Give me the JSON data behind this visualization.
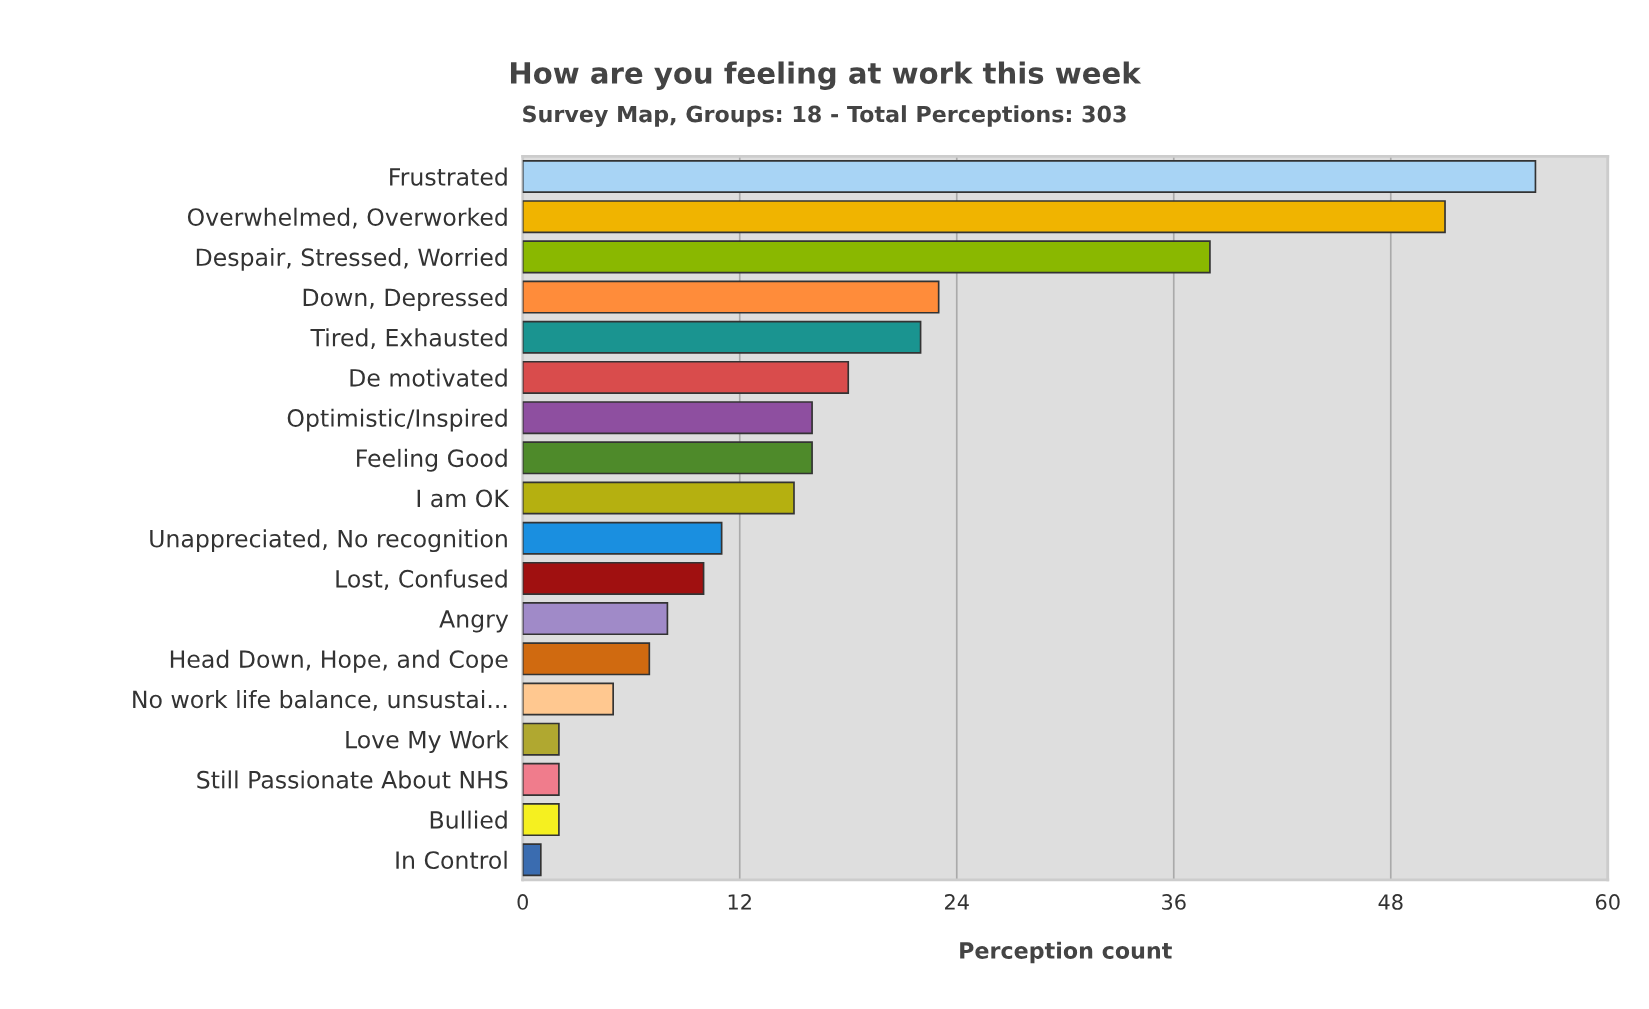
{
  "chart_data": {
    "type": "bar",
    "orientation": "horizontal",
    "title": "How are you feeling at work this week",
    "subtitle": "Survey Map, Groups: 18 - Total Perceptions: 303",
    "xlabel": "Perception count",
    "categories": [
      "Frustrated",
      "Overwhelmed, Overworked",
      "Despair, Stressed, Worried",
      "Down, Depressed",
      "Tired, Exhausted",
      "De motivated",
      "Optimistic/Inspired",
      "Feeling Good",
      "I am OK",
      "Unappreciated, No recognition",
      "Lost, Confused",
      "Angry",
      "Head Down, Hope, and Cope",
      "No work life balance, unsustai...",
      "Love My Work",
      "Still Passionate About NHS",
      "Bullied",
      "In Control"
    ],
    "values": [
      56,
      51,
      38,
      23,
      22,
      18,
      16,
      16,
      15,
      11,
      10,
      8,
      7,
      5,
      2,
      2,
      2,
      1
    ],
    "colors": [
      "#a8d4f5",
      "#f0b400",
      "#8ab800",
      "#ff8c3a",
      "#1a9490",
      "#d94c4c",
      "#8e4fa0",
      "#4e8a2a",
      "#b5b010",
      "#1a8fe0",
      "#a01010",
      "#a08ac8",
      "#d06a10",
      "#ffc890",
      "#b0a830",
      "#f07c8c",
      "#f5f020",
      "#3a6cb0"
    ],
    "xlim": [
      0,
      60
    ],
    "xticks": [
      0,
      12,
      24,
      36,
      48,
      60
    ],
    "grid": "x",
    "legend": false
  }
}
